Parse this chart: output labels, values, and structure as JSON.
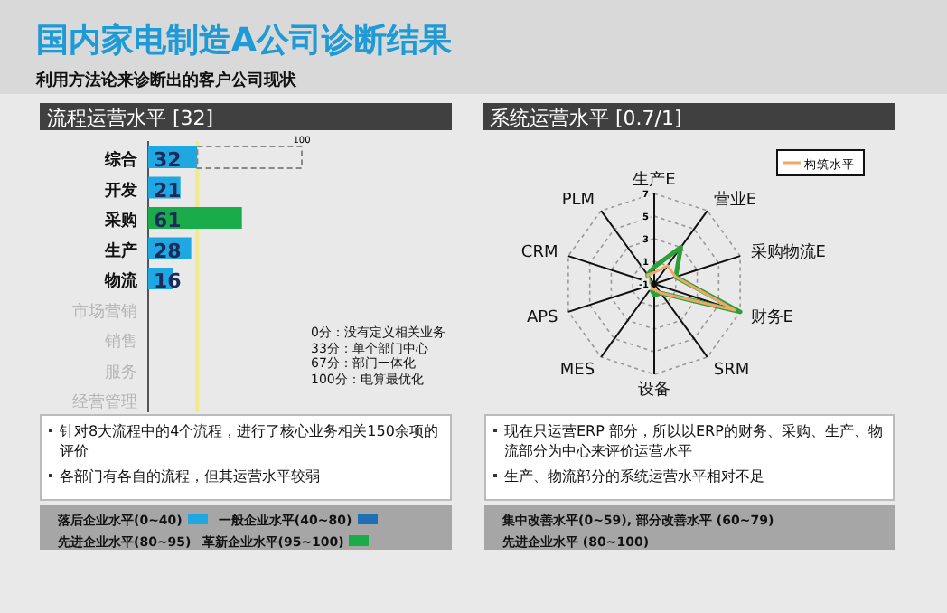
{
  "chart_data": [
    {
      "type": "other",
      "title": "国内家电制造A公司诊断结果",
      "subtitle": "利用方法论来诊断出的客户公司现状"
    },
    {
      "type": "bar",
      "orientation": "horizontal",
      "title": "流程运营水平 [32]",
      "categories": [
        "综合",
        "开发",
        "采购",
        "生产",
        "物流",
        "市场营销",
        "销售",
        "服务",
        "经营管理"
      ],
      "stacked": true,
      "series": [
        {
          "values": [
            32,
            21,
            61,
            28,
            16,
            null,
            null,
            null,
            null
          ],
          "colors": [
            "#1ea7e1",
            "#1ea7e1",
            "#1aab4b",
            "#1ea7e1",
            "#1ea7e1",
            null,
            null,
            null,
            null
          ],
          "value_labels": [
            "32",
            "21",
            "61",
            "28",
            "16",
            null,
            null,
            null,
            null
          ]
        },
        {
          "values": [
            68,
            null,
            null,
            null,
            null,
            null,
            null,
            null,
            null
          ],
          "color": "#e9e9e9",
          "line_style": "dashed"
        }
      ],
      "totals": [
        "100",
        null,
        null,
        null,
        null,
        null,
        null,
        null,
        null
      ],
      "ref_lines": [
        {
          "axis": "x",
          "value": 32,
          "color": "#f3ea8a"
        }
      ],
      "annotations": [
        "0分：没有定义相关业务",
        "33分：单个部门中心",
        "67分：部门一体化",
        "100分：电算最优化",
        "针对8大流程中的4个流程，进行了核心业务相关150余项的评价",
        "各部门有各自的流程，但其运营水平较弱",
        "落后企业水平(0~40)",
        "一般企业水平(40~80)",
        "先进企业水平(80~95)",
        "革新企业水平(95~100)"
      ]
    },
    {
      "type": "radar",
      "title": "系统运营水平 [0.7/1]",
      "categories": [
        "生产E",
        "营业E",
        "采购物流E",
        "财务E",
        "SRM",
        "设备",
        "MES",
        "APS",
        "CRM",
        "PLM"
      ],
      "ylim": [
        -1,
        7
      ],
      "yticks": [
        -1,
        1,
        3,
        5,
        7
      ],
      "grid": true,
      "legend": "top right",
      "series": [
        {
          "color": "#2e9e3a",
          "values": [
            0.5,
            3,
            1,
            7,
            0,
            0,
            -0.5,
            -0.5,
            -0.5,
            0
          ]
        },
        {
          "name": "构筑水平",
          "color": "#f0a868",
          "values": [
            0,
            1,
            1,
            6.5,
            0,
            -0.5,
            -0.5,
            -0.5,
            -0.5,
            0
          ]
        }
      ],
      "annotations": [
        "现在只运营ERP 部分，所以以ERP的财务、采购、生产、物流部分为中心来评价运营水平",
        "生产、物流部分的系统运营水平相对不足",
        "集中改善水平(0~59), 部分改善水平 (60~79)",
        "先进企业水平 (80~100)"
      ]
    }
  ]
}
